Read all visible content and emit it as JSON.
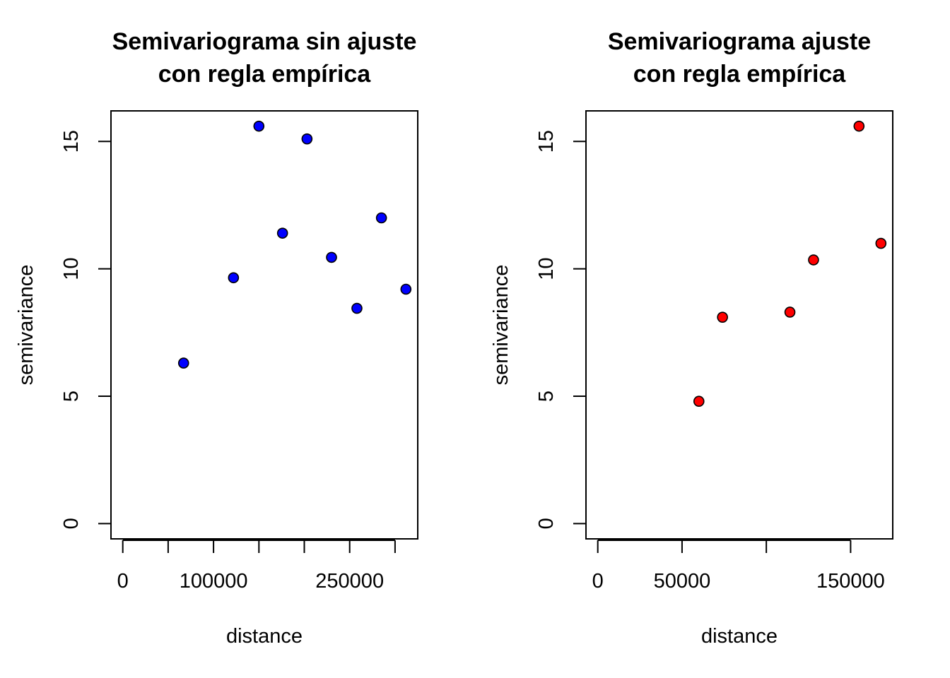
{
  "chart_data": [
    {
      "type": "scatter",
      "title_lines": [
        "Semivariograma sin ajuste",
        "con regla empírica"
      ],
      "xlabel": "distance",
      "ylabel": "semivariance",
      "xlim": [
        -13000,
        325000
      ],
      "ylim": [
        -0.6,
        16.2
      ],
      "xticks": [
        0,
        50000,
        100000,
        150000,
        200000,
        250000,
        300000
      ],
      "xtick_labels": [
        {
          "value": 0,
          "label": "0"
        },
        {
          "value": 100000,
          "label": "100000"
        },
        {
          "value": 250000,
          "label": "250000"
        }
      ],
      "yticks": [
        0,
        5,
        10,
        15
      ],
      "ytick_labels": [
        "0",
        "5",
        "10",
        "15"
      ],
      "point_color": "#0000ff",
      "series": [
        {
          "x": [
            67000,
            122000,
            150000,
            176000,
            203000,
            230000,
            258000,
            285000,
            312000
          ],
          "y": [
            6.3,
            9.65,
            15.6,
            11.4,
            15.1,
            10.45,
            8.45,
            12.0,
            9.2
          ]
        }
      ],
      "grid": false
    },
    {
      "type": "scatter",
      "title_lines": [
        "Semivariograma ajuste",
        "con regla empírica"
      ],
      "xlabel": "distance",
      "ylabel": "semivariance",
      "xlim": [
        -7000,
        175000
      ],
      "ylim": [
        -0.6,
        16.2
      ],
      "xticks": [
        0,
        50000,
        100000,
        150000
      ],
      "xtick_labels": [
        {
          "value": 0,
          "label": "0"
        },
        {
          "value": 50000,
          "label": "50000"
        },
        {
          "value": 150000,
          "label": "150000"
        }
      ],
      "yticks": [
        0,
        5,
        10,
        15
      ],
      "ytick_labels": [
        "0",
        "5",
        "10",
        "15"
      ],
      "point_color": "#ff0000",
      "series": [
        {
          "x": [
            60000,
            74000,
            114000,
            128000,
            155000,
            168000
          ],
          "y": [
            4.8,
            8.1,
            8.3,
            10.35,
            15.6,
            11.0
          ]
        }
      ],
      "grid": false
    }
  ]
}
